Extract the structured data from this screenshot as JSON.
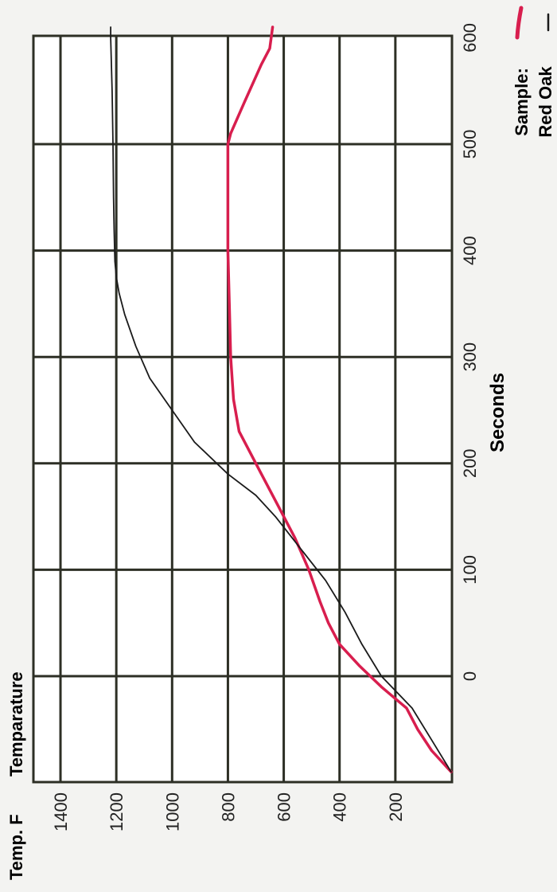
{
  "chart_data": {
    "type": "line",
    "title": "",
    "ylabel_unit": "Temp. F",
    "ylabel": "Temparature",
    "xlabel": "Seconds",
    "x_ticks": [
      "0",
      "100",
      "200",
      "300",
      "400",
      "500",
      "600"
    ],
    "y_ticks": [
      "200",
      "400",
      "600",
      "800",
      "1000",
      "1200",
      "1400"
    ],
    "xlim": [
      -95,
      625
    ],
    "ylim": [
      0,
      1400
    ],
    "grid": true,
    "legend_title": "Sample:",
    "series": [
      {
        "name": "Red Oak",
        "color": "#d81e4e",
        "x": [
          -90,
          -70,
          -50,
          -30,
          -10,
          10,
          30,
          50,
          70,
          100,
          130,
          160,
          190,
          210,
          230,
          260,
          300,
          350,
          400,
          450,
          500,
          510,
          540,
          575,
          590,
          610
        ],
        "y": [
          0,
          70,
          120,
          160,
          250,
          330,
          400,
          440,
          470,
          510,
          560,
          620,
          680,
          720,
          760,
          780,
          790,
          795,
          800,
          800,
          800,
          790,
          740,
          680,
          650,
          640
        ]
      },
      {
        "name": "",
        "color": "#1a1a1a",
        "x": [
          -90,
          -60,
          -30,
          0,
          30,
          60,
          90,
          120,
          150,
          170,
          190,
          220,
          250,
          280,
          310,
          340,
          360,
          375,
          390,
          420,
          450,
          500,
          550,
          600,
          610
        ],
        "y": [
          0,
          70,
          140,
          250,
          320,
          380,
          450,
          540,
          630,
          700,
          800,
          920,
          1000,
          1080,
          1130,
          1170,
          1190,
          1200,
          1205,
          1208,
          1210,
          1212,
          1215,
          1220,
          1220
        ]
      }
    ]
  }
}
